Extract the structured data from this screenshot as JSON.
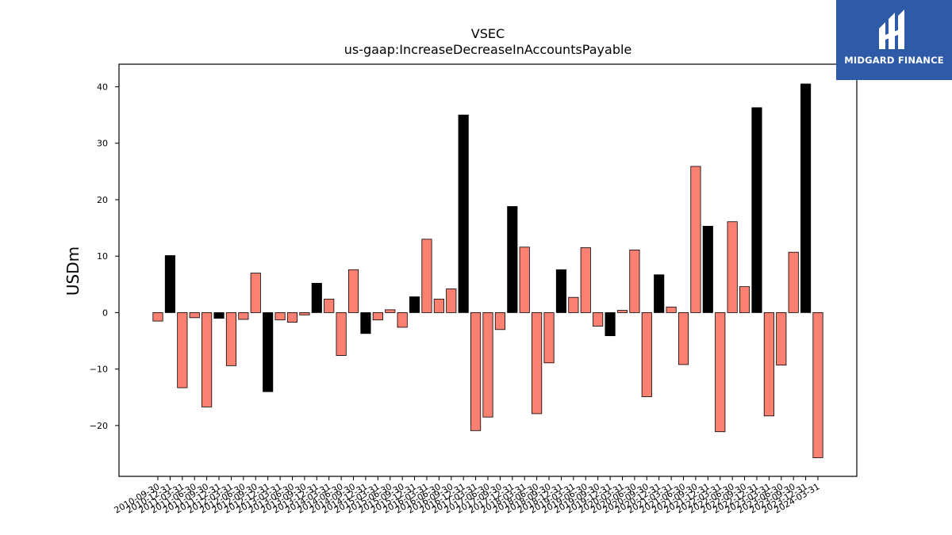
{
  "chart_data": {
    "type": "bar",
    "title": "VSEC",
    "subtitle": "us-gaap:IncreaseDecreaseInAccountsPayable",
    "xlabel": "",
    "ylabel": "USDm",
    "ylim": [
      -29,
      44
    ],
    "yticks": [
      -20,
      -10,
      0,
      10,
      20,
      30,
      40
    ],
    "ytick_labels": [
      "−20",
      "−10",
      "0",
      "10",
      "20",
      "30",
      "40"
    ],
    "grid": false,
    "colors": {
      "positive_highlight": "#000000",
      "default": "#fa8072",
      "edge": "#000000"
    },
    "categories": [
      "2010-09-30",
      "2010-12-31",
      "2011-03-31",
      "2011-06-30",
      "2011-09-30",
      "2011-12-31",
      "2012-03-31",
      "2012-06-30",
      "2012-09-30",
      "2012-12-31",
      "2013-03-31",
      "2013-06-30",
      "2013-09-30",
      "2013-12-31",
      "2014-03-31",
      "2014-06-30",
      "2014-09-30",
      "2014-12-31",
      "2015-03-31",
      "2015-06-30",
      "2015-09-30",
      "2015-12-31",
      "2016-03-31",
      "2016-06-30",
      "2016-09-30",
      "2016-12-31",
      "2017-03-31",
      "2017-06-30",
      "2017-09-30",
      "2017-12-31",
      "2018-03-31",
      "2018-06-30",
      "2018-09-30",
      "2018-12-31",
      "2019-03-31",
      "2019-06-30",
      "2019-09-30",
      "2019-12-31",
      "2020-03-31",
      "2020-06-30",
      "2020-09-30",
      "2020-12-31",
      "2021-03-31",
      "2021-06-30",
      "2021-09-30",
      "2021-12-31",
      "2022-03-31",
      "2022-06-30",
      "2022-09-30",
      "2022-12-31",
      "2023-03-31",
      "2023-06-30",
      "2023-09-30",
      "2023-12-31",
      "2024-03-31"
    ],
    "values": [
      -1.5,
      10.1,
      -13.3,
      -0.9,
      -16.7,
      -1.0,
      -9.4,
      -1.2,
      7.0,
      -14.0,
      -1.3,
      -1.7,
      -0.4,
      5.2,
      2.4,
      -7.6,
      7.6,
      -3.7,
      -1.3,
      0.5,
      -2.6,
      2.8,
      13.0,
      2.4,
      4.2,
      35.0,
      -20.9,
      -18.5,
      -3.0,
      18.8,
      11.6,
      -17.9,
      -8.9,
      7.6,
      2.7,
      11.5,
      -2.4,
      -4.1,
      0.4,
      11.1,
      -14.9,
      6.7,
      1.0,
      -9.2,
      25.9,
      15.3,
      -21.1,
      16.1,
      4.6,
      36.3,
      -18.3,
      -9.3,
      10.7,
      40.5,
      -25.7
    ],
    "highlight": [
      false,
      true,
      false,
      false,
      false,
      true,
      false,
      false,
      false,
      true,
      false,
      false,
      false,
      true,
      false,
      false,
      false,
      true,
      false,
      false,
      false,
      true,
      false,
      false,
      false,
      true,
      false,
      false,
      false,
      true,
      false,
      false,
      false,
      true,
      false,
      false,
      false,
      true,
      false,
      false,
      false,
      true,
      false,
      false,
      false,
      true,
      false,
      false,
      false,
      true,
      false,
      false,
      false,
      true,
      false
    ]
  },
  "logo": {
    "text": "MIDGARD FINANCE",
    "background": "#2f5aa8"
  }
}
